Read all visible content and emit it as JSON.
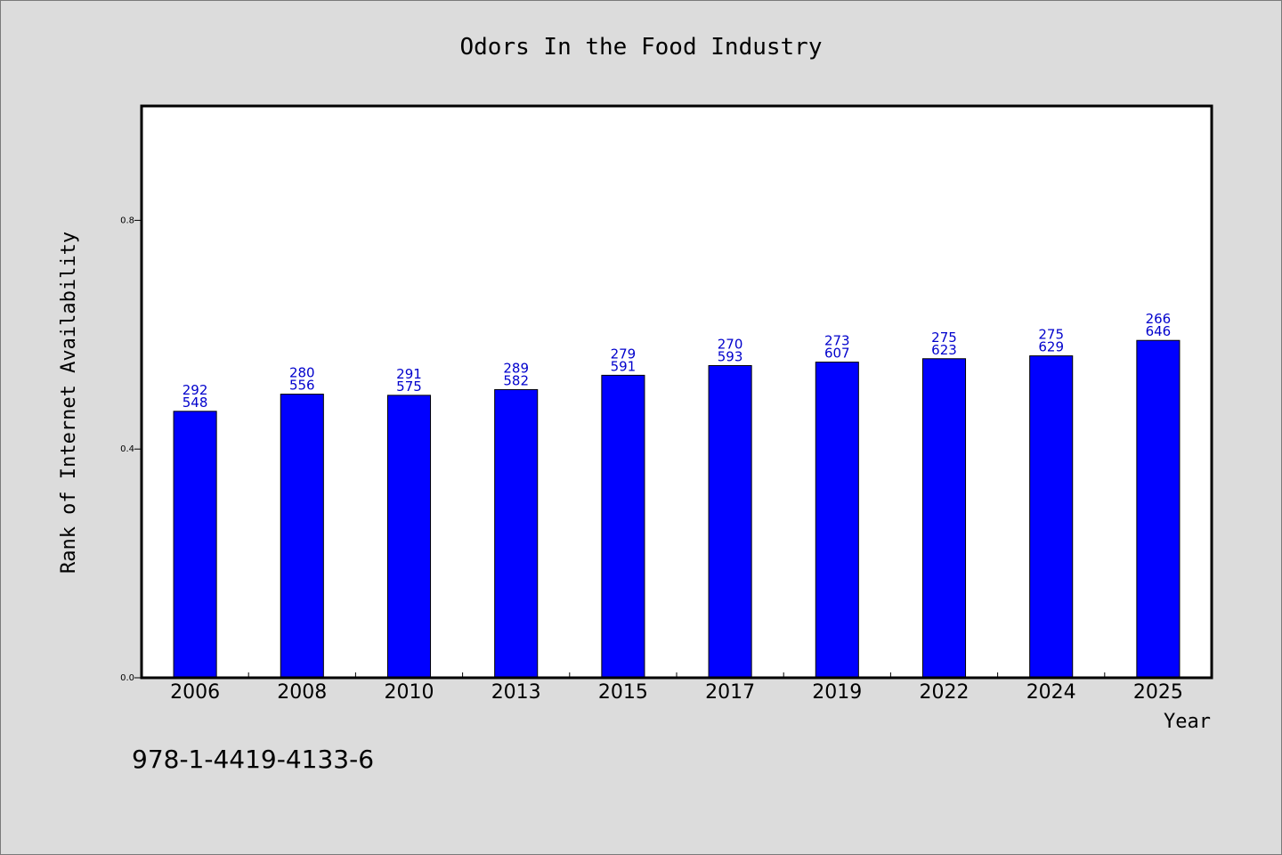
{
  "chart_data": {
    "type": "bar",
    "title": "Odors In the Food Industry",
    "xlabel": "Year",
    "ylabel": "Rank of Internet Availability",
    "categories": [
      "2006",
      "2008",
      "2010",
      "2013",
      "2015",
      "2017",
      "2019",
      "2022",
      "2024",
      "2025"
    ],
    "series": [
      {
        "values": [
          0.466,
          0.496,
          0.494,
          0.504,
          0.529,
          0.546,
          0.552,
          0.558,
          0.563,
          0.59
        ],
        "labels_top": [
          "292",
          "280",
          "291",
          "289",
          "279",
          "270",
          "273",
          "275",
          "275",
          "266"
        ],
        "labels_bottom": [
          "548",
          "556",
          "575",
          "582",
          "591",
          "593",
          "607",
          "623",
          "629",
          "646"
        ]
      }
    ],
    "ylim": [
      0,
      1.0
    ],
    "yticks": [
      0.0,
      0.4,
      0.8
    ],
    "ytick_labels": [
      "0.0",
      "0.4",
      "0.8"
    ],
    "bar_color": "#0000ff",
    "label_color": "#0000cc",
    "grid": false,
    "legend": "none"
  },
  "footer_text": "978-1-4419-4133-6"
}
